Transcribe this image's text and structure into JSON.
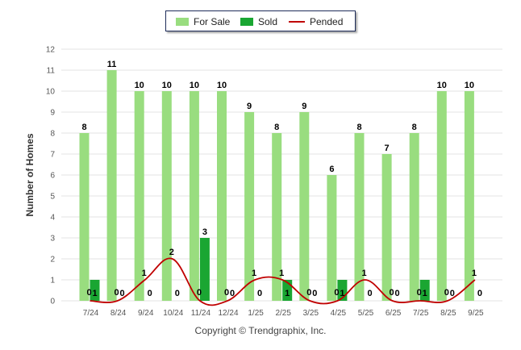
{
  "chart_data": {
    "type": "bar",
    "categories": [
      "7/24",
      "8/24",
      "9/24",
      "10/24",
      "11/24",
      "12/24",
      "1/25",
      "2/25",
      "3/25",
      "4/25",
      "5/25",
      "6/25",
      "7/25",
      "8/25",
      "9/25"
    ],
    "series": [
      {
        "name": "For Sale",
        "type": "bar",
        "color": "#99dd7f",
        "values": [
          8,
          11,
          10,
          10,
          10,
          10,
          9,
          8,
          9,
          6,
          8,
          7,
          8,
          10,
          10
        ]
      },
      {
        "name": "Sold",
        "type": "bar",
        "color": "#1aa632",
        "values": [
          1,
          0,
          0,
          0,
          3,
          0,
          0,
          1,
          0,
          1,
          0,
          0,
          1,
          0,
          0
        ]
      },
      {
        "name": "Pended",
        "type": "line",
        "color": "#c00000",
        "values": [
          0,
          0,
          1,
          2,
          0,
          0,
          1,
          1,
          0,
          0,
          1,
          0,
          0,
          0,
          1
        ]
      }
    ],
    "title": "",
    "xlabel": "",
    "ylabel": "Number of Homes",
    "ylim": [
      0,
      12
    ],
    "yticks": [
      0,
      1,
      2,
      3,
      4,
      5,
      6,
      7,
      8,
      9,
      10,
      11,
      12
    ],
    "grid": true,
    "legend_position": "top-center"
  },
  "legend": {
    "for_sale_label": "For Sale",
    "sold_label": "Sold",
    "pended_label": "Pended"
  },
  "footer": {
    "copyright": "Copyright © Trendgraphix, Inc."
  }
}
